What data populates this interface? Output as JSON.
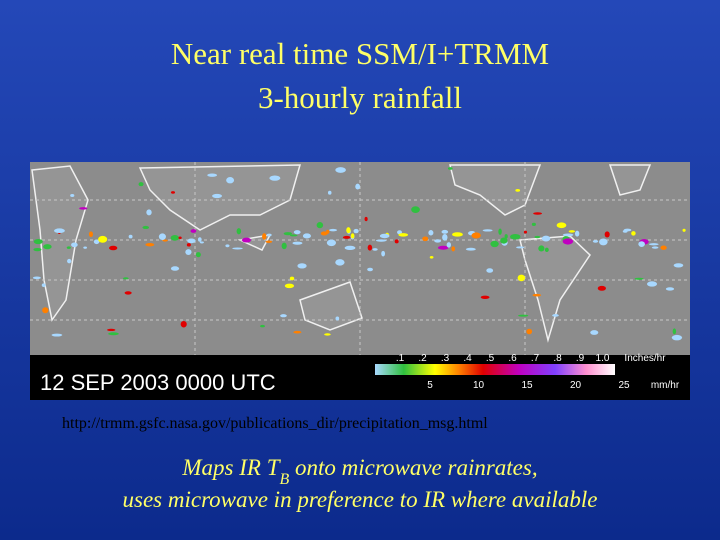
{
  "title": {
    "line1": "Near real time SSM/I+TRMM",
    "line2": "3-hourly rainfall"
  },
  "map": {
    "timestamp": "12 SEP 2003 0000 UTC",
    "inch_ticks": [
      ".1",
      ".2",
      ".3",
      ".4",
      ".5",
      ".6",
      ".7",
      ".8",
      ".9",
      "1.0"
    ],
    "inch_unit": "Inches/hr",
    "mm_ticks": [
      "5",
      "10",
      "15",
      "20",
      "25"
    ],
    "mm_unit": "mm/hr"
  },
  "url": "http://trmm.gsfc.nasa.gov/publications_dir/precipitation_msg.html",
  "caption": {
    "line1_before": "Maps IR T",
    "line1_sub": "B",
    "line1_after": " onto microwave rainrates,",
    "line2": "uses microwave in preference to IR where available"
  }
}
